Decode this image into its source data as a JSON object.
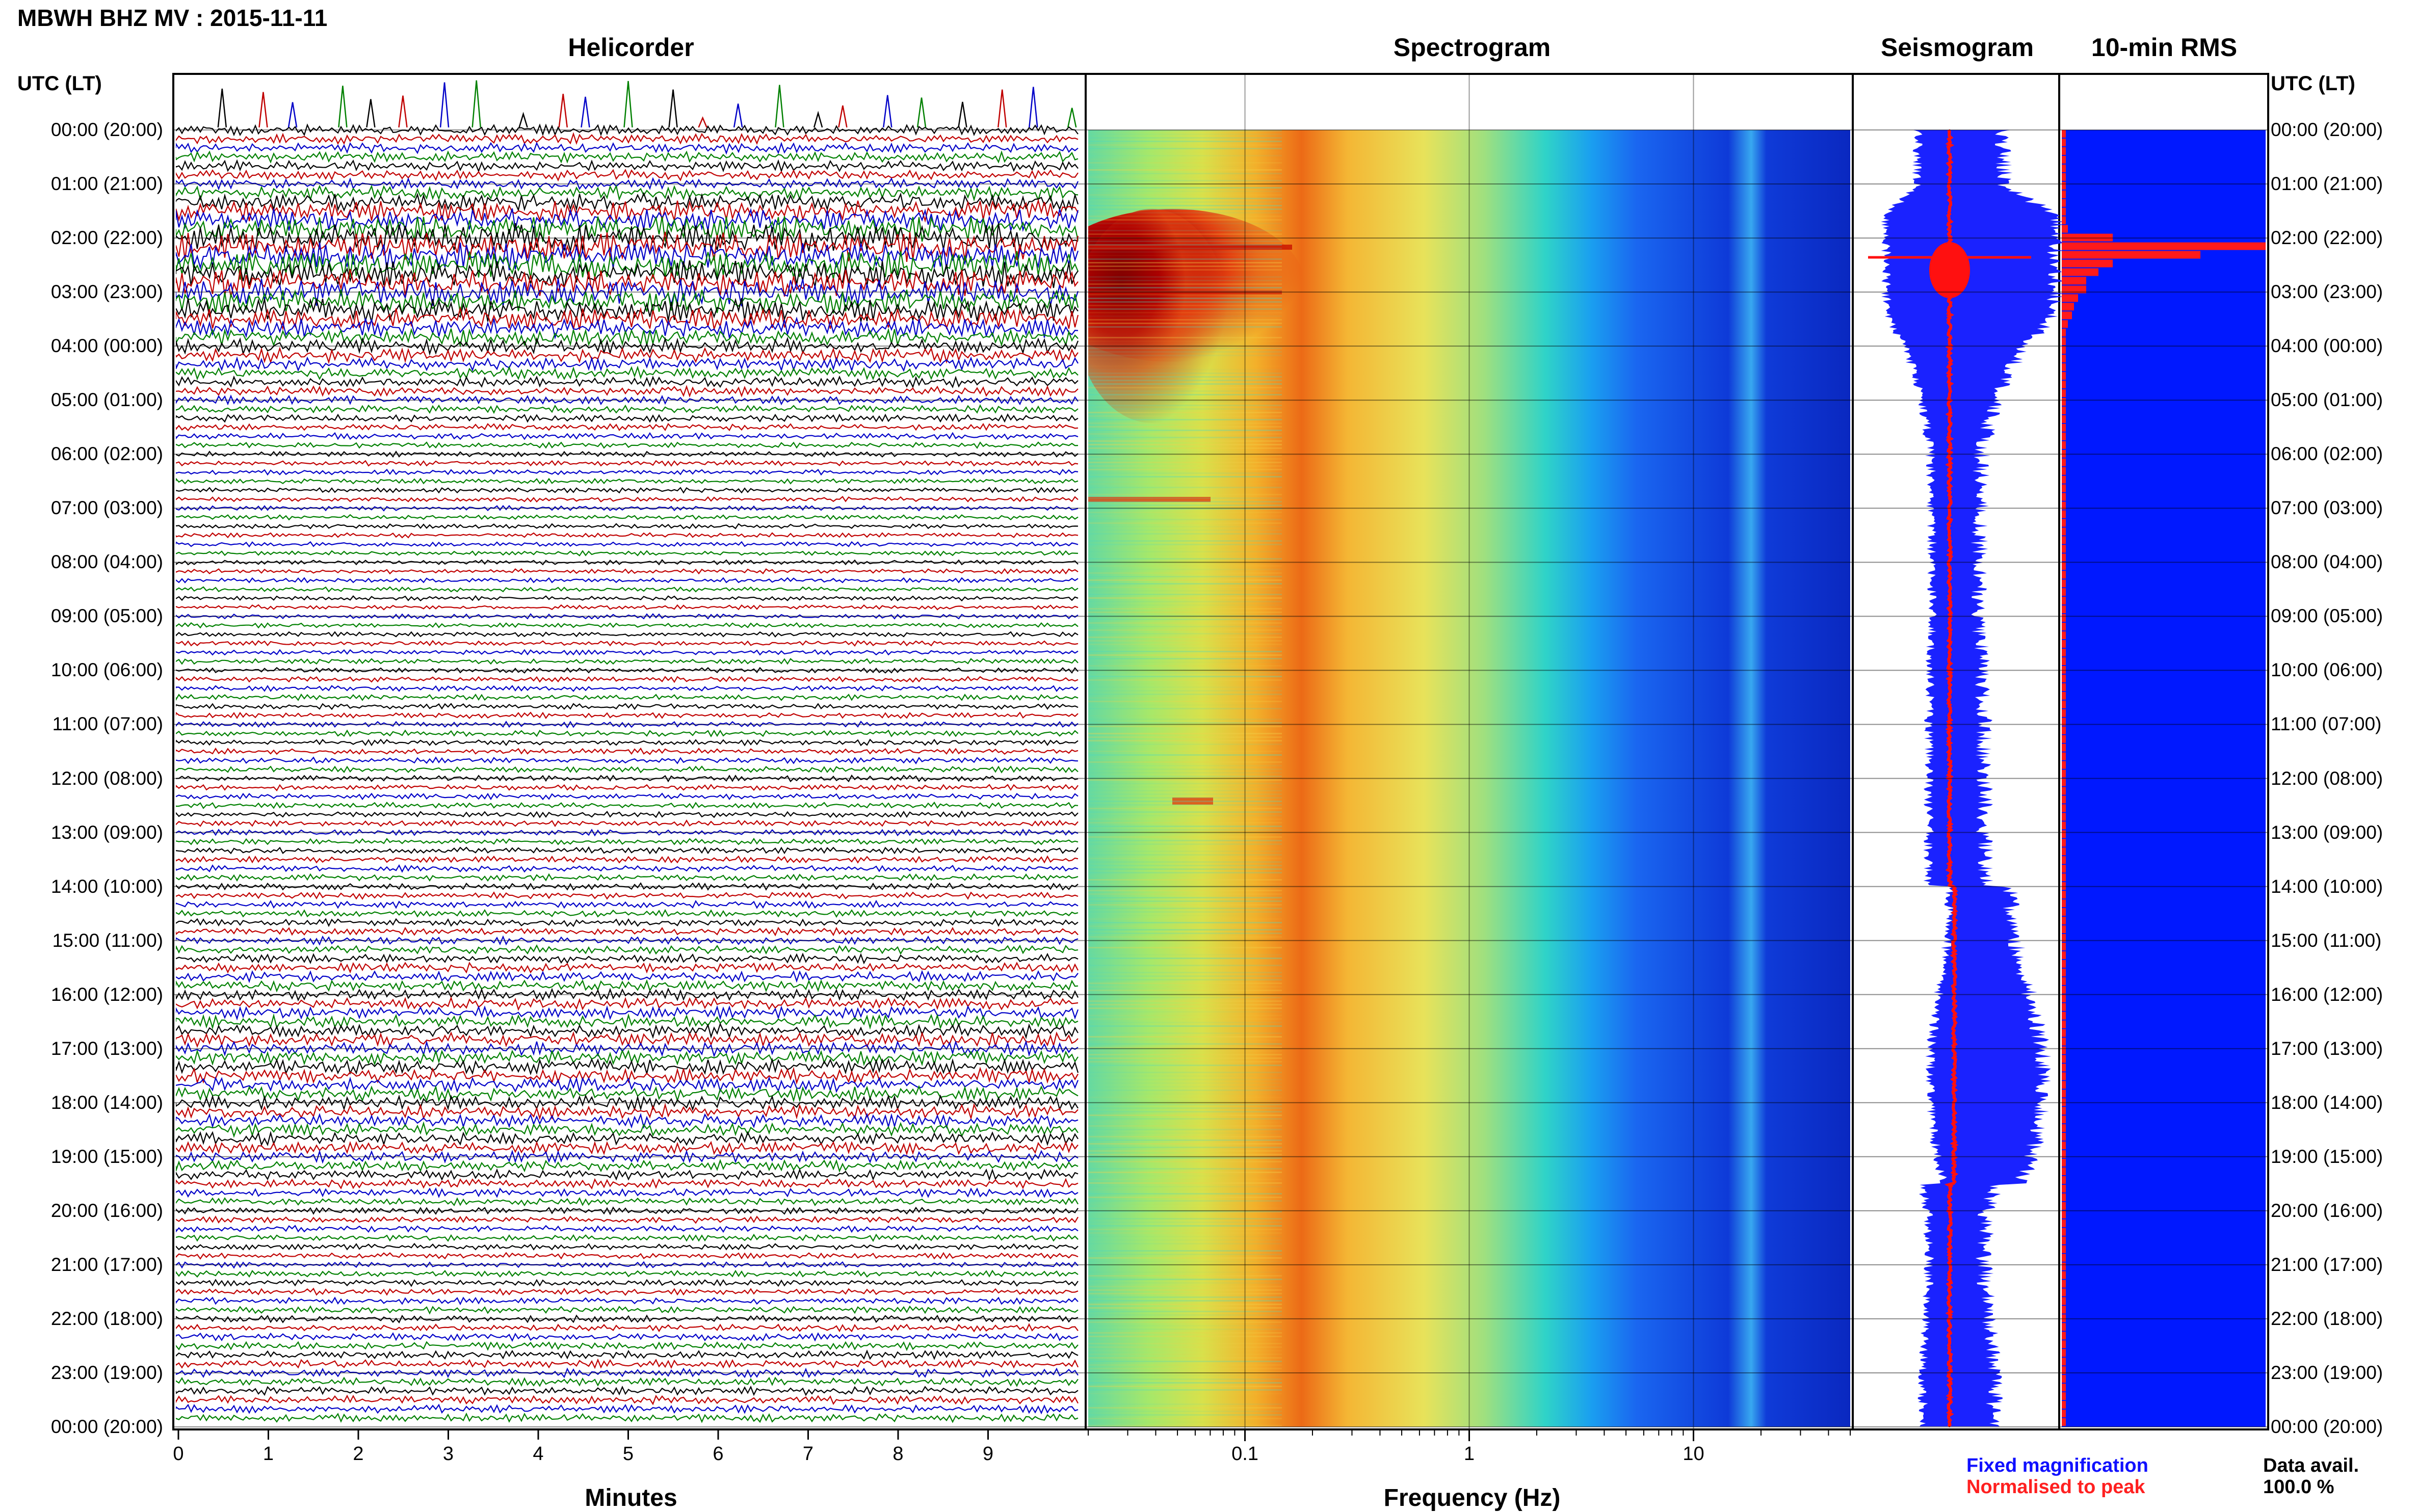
{
  "header": {
    "station_title": "MBWH BHZ MV : 2015-11-11",
    "utc_label_left": "UTC (LT)",
    "utc_label_right": "UTC (LT)"
  },
  "panels": {
    "helicorder": "Helicorder",
    "spectrogram": "Spectrogram",
    "seismogram": "Seismogram",
    "rms": "10-min RMS"
  },
  "time_labels": [
    "00:00 (20:00)",
    "01:00 (21:00)",
    "02:00 (22:00)",
    "03:00 (23:00)",
    "04:00 (00:00)",
    "05:00 (01:00)",
    "06:00 (02:00)",
    "07:00 (03:00)",
    "08:00 (04:00)",
    "09:00 (05:00)",
    "10:00 (06:00)",
    "11:00 (07:00)",
    "12:00 (08:00)",
    "13:00 (09:00)",
    "14:00 (10:00)",
    "15:00 (11:00)",
    "16:00 (12:00)",
    "17:00 (13:00)",
    "18:00 (14:00)",
    "19:00 (15:00)",
    "20:00 (16:00)",
    "21:00 (17:00)",
    "22:00 (18:00)",
    "23:00 (19:00)",
    "00:00 (20:00)"
  ],
  "helicorder_axis": {
    "label": "Minutes",
    "ticks": [
      "0",
      "1",
      "2",
      "3",
      "4",
      "5",
      "6",
      "7",
      "8",
      "9"
    ],
    "trace_colors": [
      "#000000",
      "#c00000",
      "#0000c8",
      "#008000"
    ]
  },
  "spectrogram_axis": {
    "label": "Frequency (Hz)",
    "ticks": [
      "0.1",
      "1",
      "10"
    ],
    "scale": "log"
  },
  "legend": {
    "fixed": "Fixed magnification",
    "fixed_color": "#1010ff",
    "normalised": "Normalised to peak",
    "normalised_color": "#ff2020"
  },
  "availability": {
    "label": "Data avail.",
    "value": "100.0 %"
  },
  "chart_data": {
    "type": "heatmap",
    "title": "MBWH BHZ MV : 2015-11-11",
    "y_axis": "UTC (LT)",
    "y_range": [
      "00:00",
      "24:00"
    ],
    "helicorder": {
      "x_unit": "Minutes",
      "xlim": [
        0,
        10
      ],
      "row_minutes": 10
    },
    "spectrogram": {
      "x_unit": "Hz",
      "x_scale": "log",
      "xlim": [
        0.02,
        50
      ]
    },
    "rms_10min_normalised": [
      0.02,
      0.02,
      0.02,
      0.02,
      0.02,
      0.02,
      0.02,
      0.02,
      0.02,
      0.02,
      0.02,
      0.03,
      0.25,
      1.0,
      0.68,
      0.25,
      0.18,
      0.12,
      0.12,
      0.08,
      0.06,
      0.05,
      0.03,
      0.02,
      0.02,
      0.02,
      0.02,
      0.02,
      0.02,
      0.02,
      0.02,
      0.02,
      0.02,
      0.02,
      0.02,
      0.02,
      0.02,
      0.02,
      0.02,
      0.02,
      0.02,
      0.02,
      0.02,
      0.02,
      0.02,
      0.02,
      0.02,
      0.02,
      0.02,
      0.02,
      0.02,
      0.02,
      0.02,
      0.02,
      0.02,
      0.02,
      0.02,
      0.02,
      0.02,
      0.02,
      0.02,
      0.02,
      0.02,
      0.02,
      0.02,
      0.02,
      0.02,
      0.02,
      0.02,
      0.02,
      0.02,
      0.02,
      0.02,
      0.02,
      0.02,
      0.02,
      0.02,
      0.02,
      0.02,
      0.02,
      0.02,
      0.02,
      0.02,
      0.02,
      0.02,
      0.02,
      0.02,
      0.02,
      0.02,
      0.02,
      0.02,
      0.02,
      0.02,
      0.02,
      0.02,
      0.02,
      0.02,
      0.02,
      0.02,
      0.02,
      0.02,
      0.02,
      0.02,
      0.02,
      0.02,
      0.02,
      0.02,
      0.02,
      0.02,
      0.02,
      0.02,
      0.02,
      0.02,
      0.02,
      0.02,
      0.02,
      0.02,
      0.02,
      0.02,
      0.02,
      0.02,
      0.02,
      0.02,
      0.02,
      0.02,
      0.02,
      0.02,
      0.02,
      0.02,
      0.02,
      0.02,
      0.02,
      0.02,
      0.02,
      0.02,
      0.02,
      0.02,
      0.02,
      0.02,
      0.02,
      0.02,
      0.02,
      0.02,
      0.02,
      0.02,
      0.02,
      0.02,
      0.02,
      0.02,
      0.02
    ],
    "seismogram_fixed_envelope_hourly": [
      0.85,
      0.9,
      2.6,
      2.4,
      1.3,
      0.7,
      0.45,
      0.42,
      0.4,
      0.4,
      0.45,
      0.5,
      0.5,
      0.5,
      0.55,
      0.65,
      0.95,
      1.2,
      1.2,
      1.0,
      0.55,
      0.5,
      0.6,
      0.7,
      0.7
    ],
    "data_availability_percent": 100.0
  }
}
